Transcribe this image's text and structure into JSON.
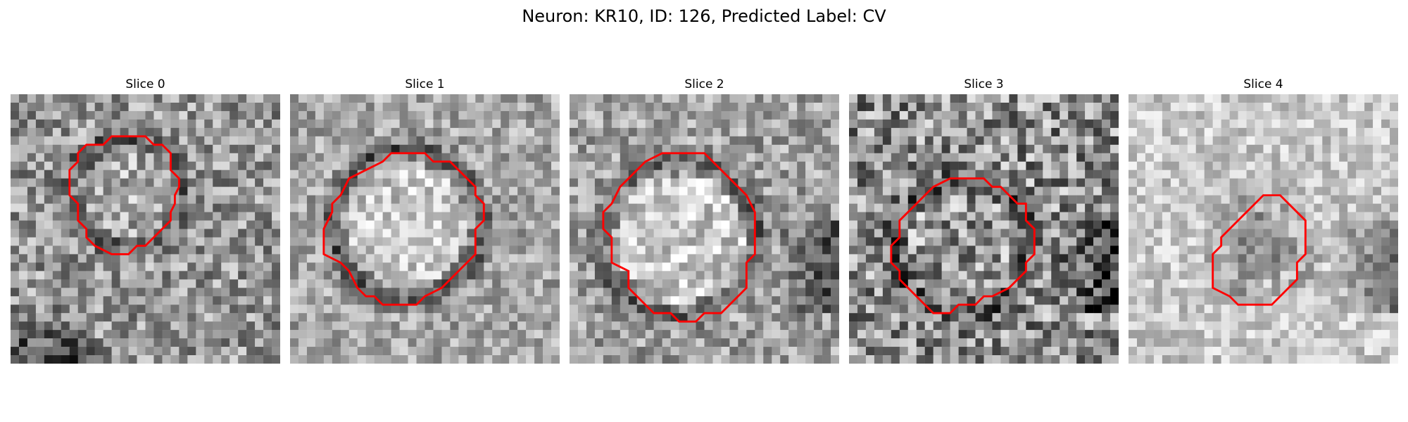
{
  "figure": {
    "title": "Neuron: KR10, ID: 126, Predicted Label: CV"
  },
  "panels": [
    {
      "title": "Slice 0",
      "contour": [
        [
          14.5,
          5
        ],
        [
          16,
          5
        ],
        [
          17,
          6
        ],
        [
          18,
          6
        ],
        [
          19,
          7
        ],
        [
          19,
          9
        ],
        [
          20,
          10
        ],
        [
          20,
          11
        ],
        [
          19.5,
          12
        ],
        [
          19.5,
          13
        ],
        [
          19,
          14
        ],
        [
          19,
          15
        ],
        [
          18,
          16
        ],
        [
          17,
          17
        ],
        [
          16,
          18
        ],
        [
          15,
          18
        ],
        [
          14,
          19
        ],
        [
          12,
          19
        ],
        [
          11,
          18.5
        ],
        [
          10,
          18
        ],
        [
          9,
          17
        ],
        [
          9,
          16
        ],
        [
          8,
          15
        ],
        [
          8,
          13
        ],
        [
          7,
          12
        ],
        [
          7,
          9
        ],
        [
          8,
          8
        ],
        [
          8,
          7
        ],
        [
          9,
          6
        ],
        [
          11,
          6
        ],
        [
          12,
          5
        ],
        [
          13.5,
          5
        ]
      ]
    },
    {
      "title": "Slice 1",
      "contour": [
        [
          13,
          7
        ],
        [
          16,
          7
        ],
        [
          17,
          8
        ],
        [
          19,
          8
        ],
        [
          20,
          9
        ],
        [
          21,
          10
        ],
        [
          22,
          11
        ],
        [
          22,
          12
        ],
        [
          23,
          13
        ],
        [
          23,
          15
        ],
        [
          22,
          16
        ],
        [
          22,
          19
        ],
        [
          21,
          20
        ],
        [
          20,
          21
        ],
        [
          19,
          22
        ],
        [
          18,
          23
        ],
        [
          16,
          24
        ],
        [
          15,
          25
        ],
        [
          11,
          25
        ],
        [
          10,
          24
        ],
        [
          9,
          24
        ],
        [
          8,
          23
        ],
        [
          7,
          21
        ],
        [
          6,
          20
        ],
        [
          4,
          19
        ],
        [
          4,
          16
        ],
        [
          5,
          14
        ],
        [
          5,
          13
        ],
        [
          6,
          12
        ],
        [
          7,
          10
        ],
        [
          8,
          9.5
        ],
        [
          9,
          9
        ],
        [
          11,
          8
        ],
        [
          12,
          7
        ]
      ]
    },
    {
      "title": "Slice 2",
      "contour": [
        [
          13,
          7
        ],
        [
          16,
          7
        ],
        [
          17,
          8
        ],
        [
          18,
          9
        ],
        [
          19,
          10
        ],
        [
          20,
          11
        ],
        [
          21,
          12
        ],
        [
          22,
          14
        ],
        [
          22,
          19
        ],
        [
          21,
          20
        ],
        [
          21,
          23
        ],
        [
          20,
          24
        ],
        [
          19,
          25
        ],
        [
          18,
          26
        ],
        [
          16,
          26
        ],
        [
          15,
          27
        ],
        [
          13,
          27
        ],
        [
          12,
          26
        ],
        [
          10,
          26
        ],
        [
          9,
          25
        ],
        [
          8,
          24
        ],
        [
          7,
          23
        ],
        [
          7,
          21
        ],
        [
          5,
          20
        ],
        [
          5,
          17
        ],
        [
          4,
          16
        ],
        [
          4,
          14
        ],
        [
          5,
          13
        ],
        [
          6,
          11
        ],
        [
          7,
          10
        ],
        [
          8,
          9
        ],
        [
          9,
          8
        ],
        [
          11,
          7
        ]
      ]
    },
    {
      "title": "Slice 3",
      "contour": [
        [
          14,
          10
        ],
        [
          16,
          10
        ],
        [
          17,
          11
        ],
        [
          18,
          11
        ],
        [
          19,
          12
        ],
        [
          20,
          13
        ],
        [
          21,
          13
        ],
        [
          21,
          15
        ],
        [
          22,
          16
        ],
        [
          22,
          19
        ],
        [
          21,
          20
        ],
        [
          21,
          21
        ],
        [
          20,
          22
        ],
        [
          19,
          23
        ],
        [
          17,
          24
        ],
        [
          16,
          24
        ],
        [
          15,
          25
        ],
        [
          13,
          25
        ],
        [
          12,
          26
        ],
        [
          10,
          26
        ],
        [
          9,
          25
        ],
        [
          8,
          24
        ],
        [
          7,
          23
        ],
        [
          6,
          22
        ],
        [
          6,
          21
        ],
        [
          5,
          20
        ],
        [
          5,
          18
        ],
        [
          6,
          17
        ],
        [
          6,
          15
        ],
        [
          7,
          14
        ],
        [
          8,
          13
        ],
        [
          9,
          12
        ],
        [
          10,
          11
        ],
        [
          12,
          10
        ]
      ]
    },
    {
      "title": "Slice 4",
      "contour": [
        [
          16,
          12
        ],
        [
          18,
          12
        ],
        [
          19,
          13
        ],
        [
          20,
          14
        ],
        [
          21,
          15
        ],
        [
          21,
          19
        ],
        [
          20,
          20
        ],
        [
          20,
          22
        ],
        [
          19,
          23
        ],
        [
          18,
          24
        ],
        [
          17,
          25
        ],
        [
          13,
          25
        ],
        [
          12,
          24
        ],
        [
          10,
          23
        ],
        [
          10,
          19
        ],
        [
          11,
          18
        ],
        [
          11,
          17
        ],
        [
          12,
          16
        ],
        [
          13,
          15
        ],
        [
          14,
          14
        ],
        [
          15,
          13
        ]
      ]
    }
  ]
}
